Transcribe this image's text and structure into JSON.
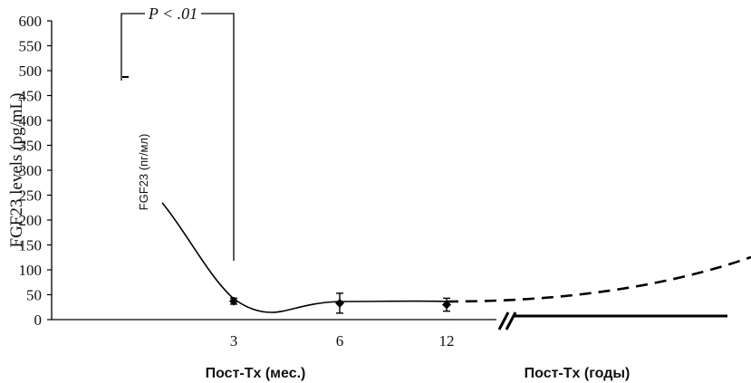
{
  "chart_data": {
    "type": "line",
    "ylabel": "FGF23 levels (pg/mL)",
    "inner_ylabel": "FGF23 (пг/мл)",
    "ylim": [
      0,
      600
    ],
    "yticks": [
      0,
      50,
      100,
      150,
      200,
      250,
      300,
      350,
      400,
      450,
      500,
      550,
      600
    ],
    "x_tick_labels": [
      "3",
      "6",
      "12"
    ],
    "x_category_labels": [
      "Пост-Tx (мес.)",
      "Пост-Tx (годы)"
    ],
    "annotation": "P < .01",
    "baseline_value": 493,
    "series": [
      {
        "points": [
          {
            "x": "3",
            "y": 37,
            "err": 6
          },
          {
            "x": "6",
            "y": 33,
            "err": 20
          },
          {
            "x": "12",
            "y": 30,
            "err": 13
          }
        ]
      }
    ],
    "grid": false
  },
  "colors": {
    "line": "#000000",
    "text": "#111111",
    "background": "#ffffff"
  }
}
